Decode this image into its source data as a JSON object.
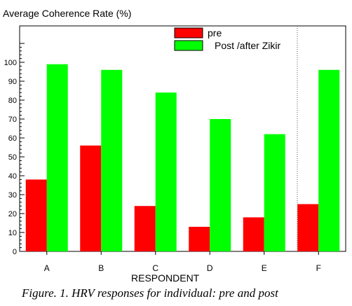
{
  "chart_data": {
    "type": "bar",
    "ylabel": "Average Coherence Rate (%)",
    "xlabel": "RESPONDENT",
    "categories": [
      "A",
      "B",
      "C",
      "D",
      "E",
      "F"
    ],
    "series": [
      {
        "name": "pre",
        "values": [
          38,
          56,
          24,
          13,
          18,
          25
        ],
        "color": "#ff0000"
      },
      {
        "name": "Post /after Zikir",
        "values": [
          99,
          96,
          84,
          70,
          62,
          96
        ],
        "color": "#00ff00"
      }
    ],
    "ylim": [
      0,
      100
    ],
    "yticks": [
      0,
      10,
      20,
      30,
      40,
      50,
      60,
      70,
      80,
      90,
      100
    ],
    "grid": false,
    "legend_position": "top-right",
    "caption": "Figure. 1. HRV responses for individual: pre and post"
  }
}
